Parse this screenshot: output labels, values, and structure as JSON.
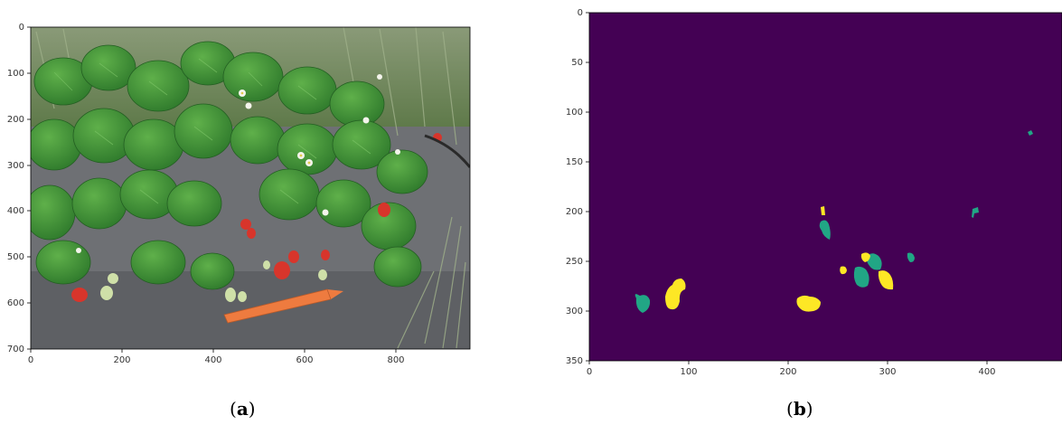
{
  "panel_a": {
    "caption_letter": "a",
    "x_ticks": [
      "0",
      "200",
      "400",
      "600",
      "800"
    ],
    "y_ticks": [
      "0",
      "100",
      "200",
      "300",
      "400",
      "500",
      "600",
      "700"
    ]
  },
  "panel_b": {
    "caption_letter": "b",
    "x_ticks": [
      "0",
      "100",
      "200",
      "300",
      "400"
    ],
    "y_ticks": [
      "0",
      "50",
      "100",
      "150",
      "200",
      "250",
      "300",
      "350"
    ],
    "colors": {
      "background": "#440154",
      "class_1": "#21a685",
      "class_2": "#fde725"
    }
  },
  "captions": {
    "open": "(",
    "close": ")"
  }
}
